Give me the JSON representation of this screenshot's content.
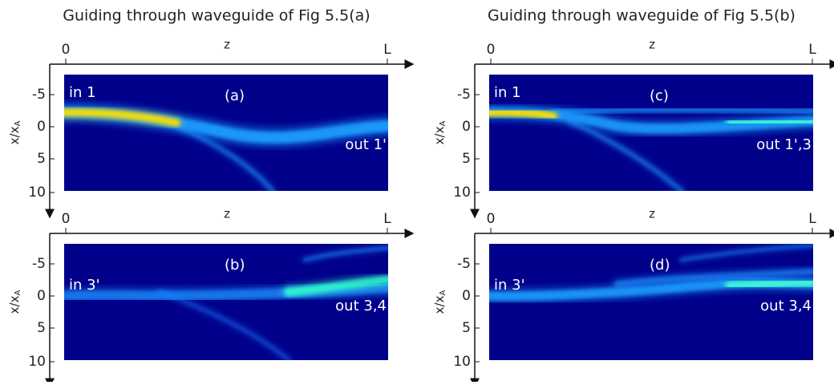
{
  "titles": [
    "Guiding through waveguide of Fig 5.5(a)",
    "Guiding through waveguide of Fig 5.5(b)"
  ],
  "axes": {
    "x_label": "z",
    "x_ticks": [
      "0",
      "L"
    ],
    "y_label": "x/x",
    "y_label_sub": "A",
    "y_ticks": [
      "-5",
      "0",
      "5",
      "10"
    ]
  },
  "panels": [
    {
      "label": "(a)",
      "in": "in 1",
      "out": "out 1'"
    },
    {
      "label": "(b)",
      "in": "in 3'",
      "out": "out 3,4"
    },
    {
      "label": "(c)",
      "in": "in 1",
      "out": "out 1',3"
    },
    {
      "label": "(d)",
      "in": "in 3'",
      "out": "out 3,4"
    }
  ]
}
